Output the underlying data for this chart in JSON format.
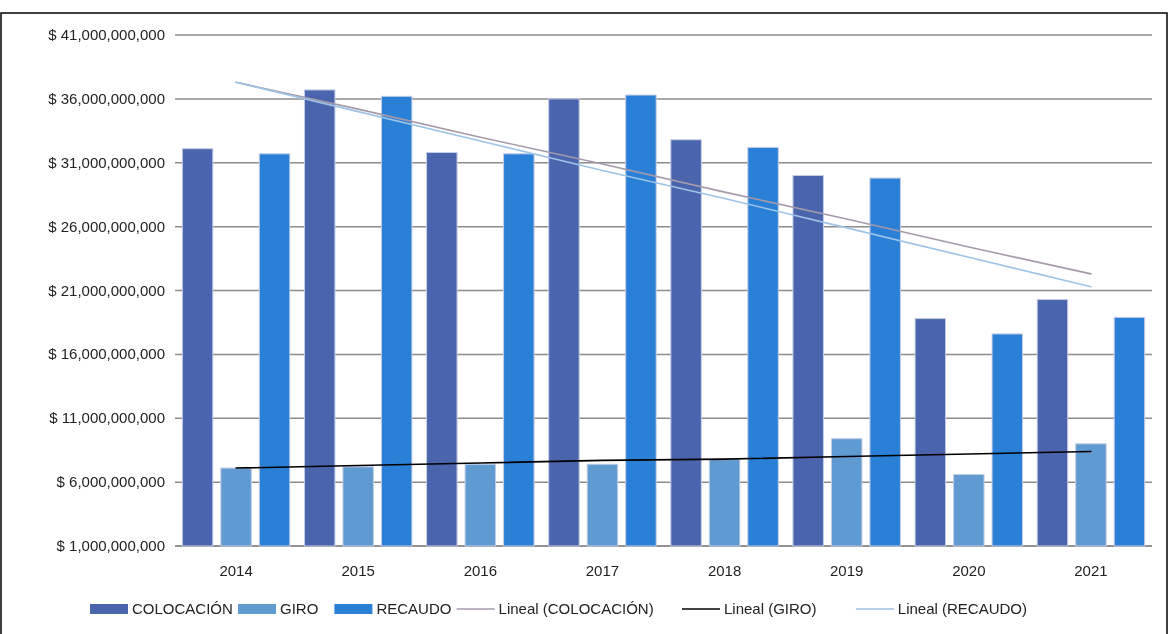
{
  "chart_data": {
    "type": "bar",
    "categories": [
      "2014",
      "2015",
      "2016",
      "2017",
      "2018",
      "2019",
      "2020",
      "2021"
    ],
    "series": [
      {
        "name": "COLOCACIÓN",
        "color": "#4a65ad",
        "values": [
          32100000000,
          36700000000,
          31800000000,
          36000000000,
          32800000000,
          30000000000,
          18800000000,
          20300000000
        ]
      },
      {
        "name": "GIRO",
        "color": "#5f9bd0",
        "values": [
          7100000000,
          7200000000,
          7400000000,
          7400000000,
          7800000000,
          9400000000,
          6600000000,
          9000000000
        ]
      },
      {
        "name": "RECAUDO",
        "color": "#2a7fd6",
        "values": [
          31700000000,
          36200000000,
          31700000000,
          36300000000,
          32200000000,
          29800000000,
          17600000000,
          18900000000
        ]
      },
      {
        "name": "Lineal (COLOCACIÓN)",
        "type": "line",
        "color": "#a59aaa",
        "values": [
          37300000000,
          35200000000,
          33000000000,
          30900000000,
          28700000000,
          26600000000,
          24400000000,
          22300000000
        ]
      },
      {
        "name": "Lineal (GIRO)",
        "type": "line",
        "color": "#000000",
        "values": [
          7100000000,
          7300000000,
          7500000000,
          7700000000,
          7800000000,
          8000000000,
          8200000000,
          8400000000
        ]
      },
      {
        "name": "Lineal (RECAUDO)",
        "type": "line",
        "color": "#9dc3e6",
        "values": [
          37300000000,
          35000000000,
          32700000000,
          30400000000,
          28200000000,
          25900000000,
          23600000000,
          21300000000
        ]
      }
    ],
    "ylim": [
      1000000000,
      41000000000
    ],
    "yticks": [
      {
        "value": 1000000000,
        "label": "$ 1,000,000,000"
      },
      {
        "value": 6000000000,
        "label": "$ 6,000,000,000"
      },
      {
        "value": 11000000000,
        "label": "$ 11,000,000,000"
      },
      {
        "value": 16000000000,
        "label": "$ 16,000,000,000"
      },
      {
        "value": 21000000000,
        "label": "$ 21,000,000,000"
      },
      {
        "value": 26000000000,
        "label": "$ 26,000,000,000"
      },
      {
        "value": 31000000000,
        "label": "$ 31,000,000,000"
      },
      {
        "value": 36000000000,
        "label": "$ 36,000,000,000"
      },
      {
        "value": 41000000000,
        "label": "$ 41,000,000,000"
      }
    ],
    "grid": "y",
    "legend": "bottom"
  }
}
